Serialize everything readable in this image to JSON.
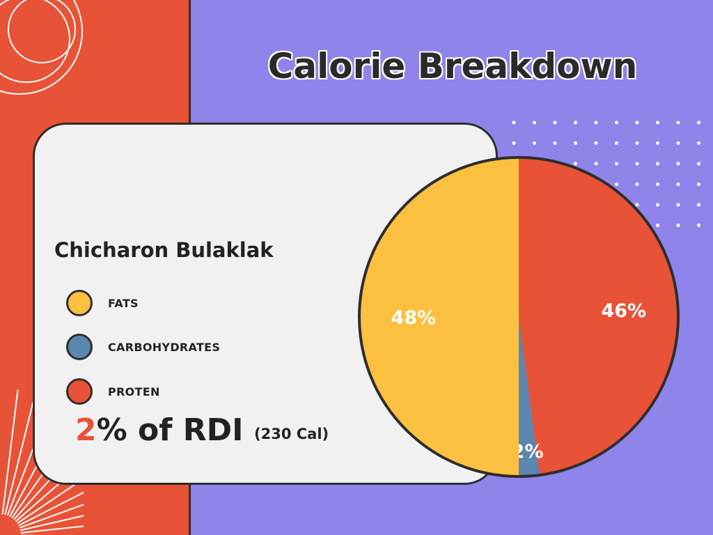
{
  "title": "Calorie Breakdown",
  "food_name": "Chicharon Bulaklak",
  "legend": [
    {
      "label": "FATS",
      "color": "#fcc040"
    },
    {
      "label": "CARBOHYDRATES",
      "color": "#5a86b0"
    },
    {
      "label": "PROTEN",
      "color": "#e85337"
    }
  ],
  "rdi": {
    "value": "2",
    "text": "% of RDI",
    "calories": "(230 Cal)"
  },
  "colors": {
    "background": "#8f84ea",
    "accent": "#e85337",
    "card": "#f1f1f1",
    "outline": "#2d2d2d"
  },
  "chart_data": {
    "type": "pie",
    "title": "Calorie Breakdown",
    "slices": [
      {
        "label": "PROTEN",
        "value": 46,
        "display": "46%",
        "color": "#e85337"
      },
      {
        "label": "CARBOHYDRATES",
        "value": 2,
        "display": "2%",
        "color": "#5a86b0"
      },
      {
        "label": "FATS",
        "value": 48,
        "display": "48%",
        "color": "#fcc040"
      }
    ]
  }
}
